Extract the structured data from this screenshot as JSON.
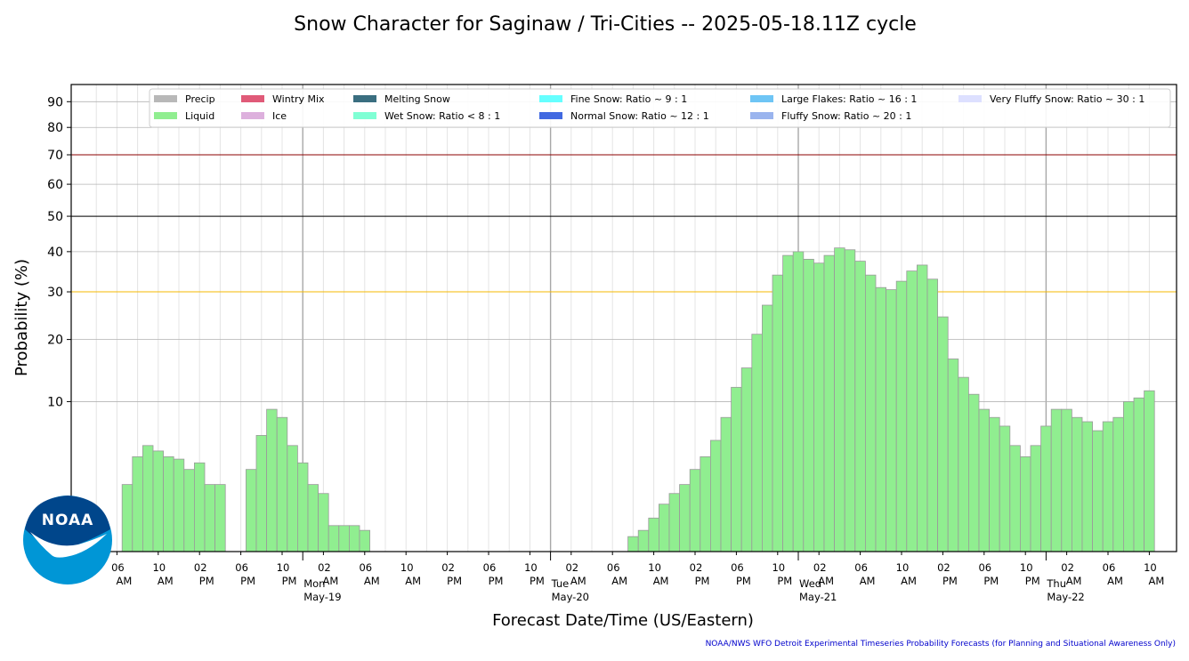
{
  "chart_data": {
    "type": "bar",
    "title": "Snow Character for Saginaw / Tri-Cities -- 2025-05-18.11Z cycle",
    "xlabel": "Forecast Date/Time (US/Eastern)",
    "ylabel": "Probability (%)",
    "y_scale": "sqrt",
    "ylim": [
      0,
      97
    ],
    "yticks": [
      10,
      20,
      30,
      40,
      50,
      60,
      70,
      80,
      90
    ],
    "reference_lines": [
      {
        "value": 30,
        "color": "#f5b800"
      },
      {
        "value": 50,
        "color": "#000000"
      },
      {
        "value": 70,
        "color": "#8b0000"
      }
    ],
    "legend_position": "top",
    "legend": [
      {
        "label": "Precip",
        "color": "#b8b8b8"
      },
      {
        "label": "Liquid",
        "color": "#90ee90"
      },
      {
        "label": "Wintry Mix",
        "color": "#e05a78"
      },
      {
        "label": "Ice",
        "color": "#ddb0dd"
      },
      {
        "label": "Melting Snow",
        "color": "#3a6e80"
      },
      {
        "label": "Wet Snow: Ratio < 8 : 1",
        "color": "#7fffd4"
      },
      {
        "label": "Fine Snow: Ratio ~ 9 : 1",
        "color": "#66ffff"
      },
      {
        "label": "Normal Snow: Ratio ~ 12 : 1",
        "color": "#4169e1"
      },
      {
        "label": "Large Flakes: Ratio ~ 16 : 1",
        "color": "#6ec5f5"
      },
      {
        "label": "Fluffy Snow: Ratio ~ 20 : 1",
        "color": "#9ab4ee"
      },
      {
        "label": "Very Fluffy Snow: Ratio ~ 30 : 1",
        "color": "#dde0ff"
      }
    ],
    "x_start_hour": 0,
    "x_end_hour": 102.5,
    "x_ticks": [
      {
        "hour": 4,
        "label": "06\nAM"
      },
      {
        "hour": 8,
        "label": "10\nAM"
      },
      {
        "hour": 12,
        "label": "02\nPM"
      },
      {
        "hour": 16,
        "label": "06\nPM"
      },
      {
        "hour": 20,
        "label": "10\nPM"
      },
      {
        "hour": 24,
        "label": "02\nAM"
      },
      {
        "hour": 28,
        "label": "06\nAM"
      },
      {
        "hour": 32,
        "label": "10\nAM"
      },
      {
        "hour": 36,
        "label": "02\nPM"
      },
      {
        "hour": 40,
        "label": "06\nPM"
      },
      {
        "hour": 44,
        "label": "10\nPM"
      },
      {
        "hour": 48,
        "label": "02\nAM"
      },
      {
        "hour": 52,
        "label": "06\nAM"
      },
      {
        "hour": 56,
        "label": "10\nAM"
      },
      {
        "hour": 60,
        "label": "02\nPM"
      },
      {
        "hour": 64,
        "label": "06\nPM"
      },
      {
        "hour": 68,
        "label": "10\nPM"
      },
      {
        "hour": 72,
        "label": "02\nAM"
      },
      {
        "hour": 76,
        "label": "06\nAM"
      },
      {
        "hour": 80,
        "label": "10\nAM"
      },
      {
        "hour": 84,
        "label": "02\nPM"
      },
      {
        "hour": 88,
        "label": "06\nPM"
      },
      {
        "hour": 92,
        "label": "10\nPM"
      },
      {
        "hour": 96,
        "label": "02\nAM"
      },
      {
        "hour": 100,
        "label": "06\nAM"
      },
      {
        "hour": 104,
        "label": "10\nAM"
      }
    ],
    "day_markers": [
      {
        "hour": 22,
        "label": "Mon\nMay-19"
      },
      {
        "hour": 46,
        "label": "Tue\nMay-20"
      },
      {
        "hour": 70,
        "label": "Wed\nMay-21"
      },
      {
        "hour": 94,
        "label": "Thu\nMay-22"
      }
    ],
    "bar_width_hours": 1,
    "series": [
      {
        "name": "Liquid",
        "start_hour": 4.5,
        "values": [
          2,
          4,
          5,
          4.5,
          4,
          3.8,
          3,
          3.5,
          2,
          2,
          0,
          0,
          3,
          6,
          9,
          8,
          5,
          3.5,
          2,
          1.5,
          0.3,
          0.3,
          0.3,
          0.2,
          0,
          0,
          0,
          0,
          0,
          0,
          0,
          0,
          0,
          0,
          0,
          0,
          0,
          0,
          0,
          0,
          0,
          0,
          0,
          0,
          0,
          0,
          0,
          0,
          0,
          0.1,
          0.2,
          0.5,
          1,
          1.5,
          2,
          3,
          4,
          5.5,
          8,
          12,
          15,
          21,
          27,
          34,
          39,
          40,
          38,
          37,
          39,
          41,
          40.5,
          37.5,
          34,
          31,
          30.5,
          32.5,
          35,
          36.5,
          33,
          24.5,
          16.5,
          13.5,
          11,
          9,
          8,
          7,
          5,
          4,
          5,
          7,
          9,
          9,
          8,
          7.5,
          6.5,
          7.5,
          8,
          10,
          10.5,
          11.5
        ]
      }
    ],
    "credit": "NOAA/NWS WFO Detroit Experimental Timeseries Probability Forecasts (for Planning and Situational Awareness Only)",
    "logo_text": "NOAA"
  }
}
